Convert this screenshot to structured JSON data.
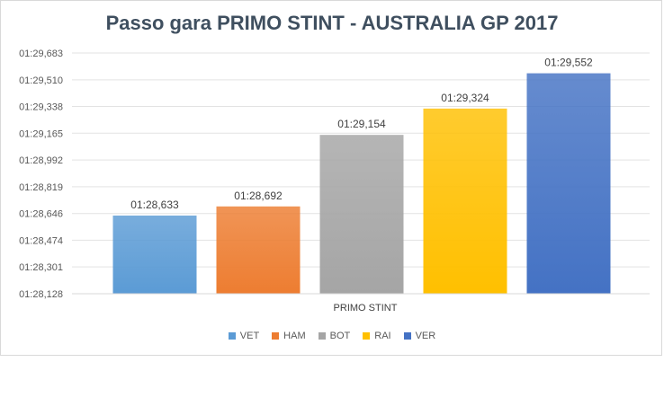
{
  "chart_data": {
    "type": "bar",
    "title": "Passo gara PRIMO STINT - AUSTRALIA GP 2017",
    "category": "PRIMO STINT",
    "series": [
      {
        "name": "VET",
        "value_seconds": 88.633,
        "label": "01:28,633",
        "color": "#5b9bd5"
      },
      {
        "name": "HAM",
        "value_seconds": 88.692,
        "label": "01:28,692",
        "color": "#ed7d31"
      },
      {
        "name": "BOT",
        "value_seconds": 89.154,
        "label": "01:29,154",
        "color": "#a5a5a5"
      },
      {
        "name": "RAI",
        "value_seconds": 89.324,
        "label": "01:29,324",
        "color": "#ffc000"
      },
      {
        "name": "VER",
        "value_seconds": 89.552,
        "label": "01:29,552",
        "color": "#4472c4"
      }
    ],
    "y_ticks": [
      "01:28,128",
      "01:28,301",
      "01:28,474",
      "01:28,646",
      "01:28,819",
      "01:28,992",
      "01:29,165",
      "01:29,338",
      "01:29,510",
      "01:29,683"
    ],
    "y_tick_seconds": [
      88.128,
      88.301,
      88.474,
      88.646,
      88.819,
      88.992,
      89.165,
      89.338,
      89.51,
      89.683
    ],
    "ylim_seconds": [
      88.128,
      89.683
    ],
    "grid": true,
    "legend_position": "bottom"
  }
}
